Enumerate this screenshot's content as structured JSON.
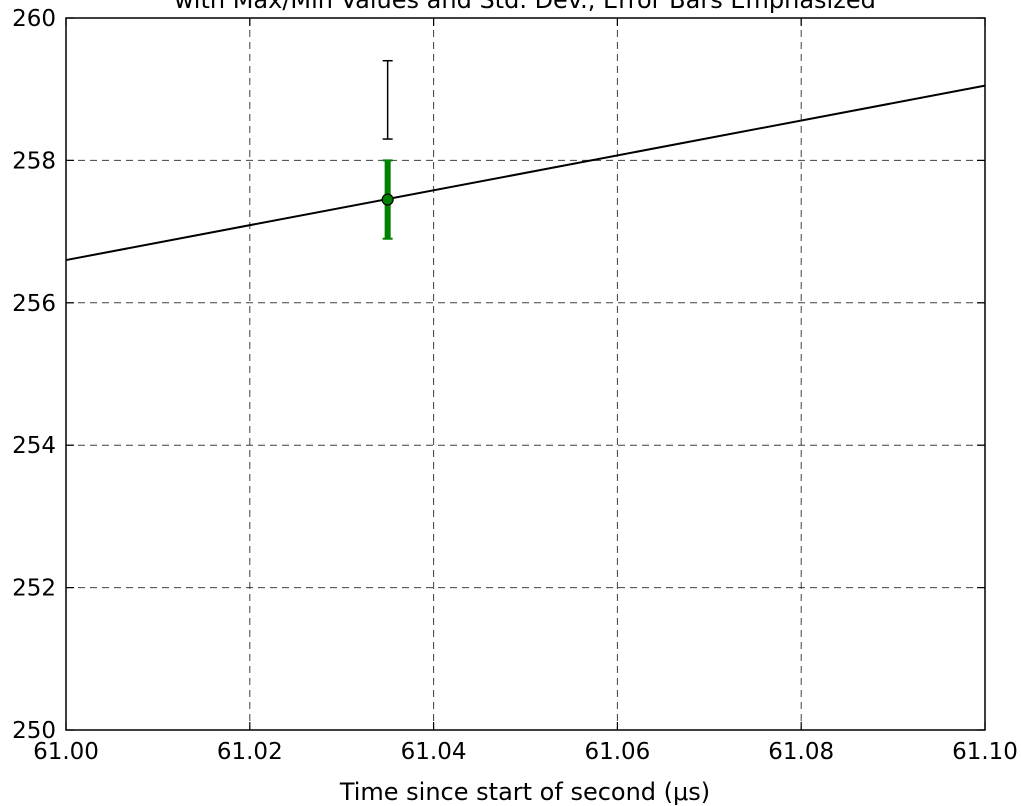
{
  "chart_data": {
    "type": "line",
    "title": "with Max/Min Values and Std. Dev., Error Bars Emphasized",
    "xlabel": "Time since start of second (μs)",
    "ylabel": "",
    "xlim": [
      61.0,
      61.1
    ],
    "ylim": [
      250,
      260
    ],
    "x_ticks": [
      "61.00",
      "61.02",
      "61.04",
      "61.06",
      "61.08",
      "61.10"
    ],
    "y_ticks": [
      "250",
      "252",
      "254",
      "256",
      "258",
      "260"
    ],
    "grid": true,
    "line": {
      "x": [
        61.0,
        61.1
      ],
      "y": [
        256.6,
        259.05
      ],
      "color": "#000000"
    },
    "point": {
      "x": 61.035,
      "y": 257.45,
      "std_dev_range": [
        256.9,
        258.0
      ],
      "max_min_range": [
        258.3,
        259.4
      ],
      "point_color": "#008000",
      "std_color": "#008000",
      "maxmin_color": "#000000"
    }
  }
}
